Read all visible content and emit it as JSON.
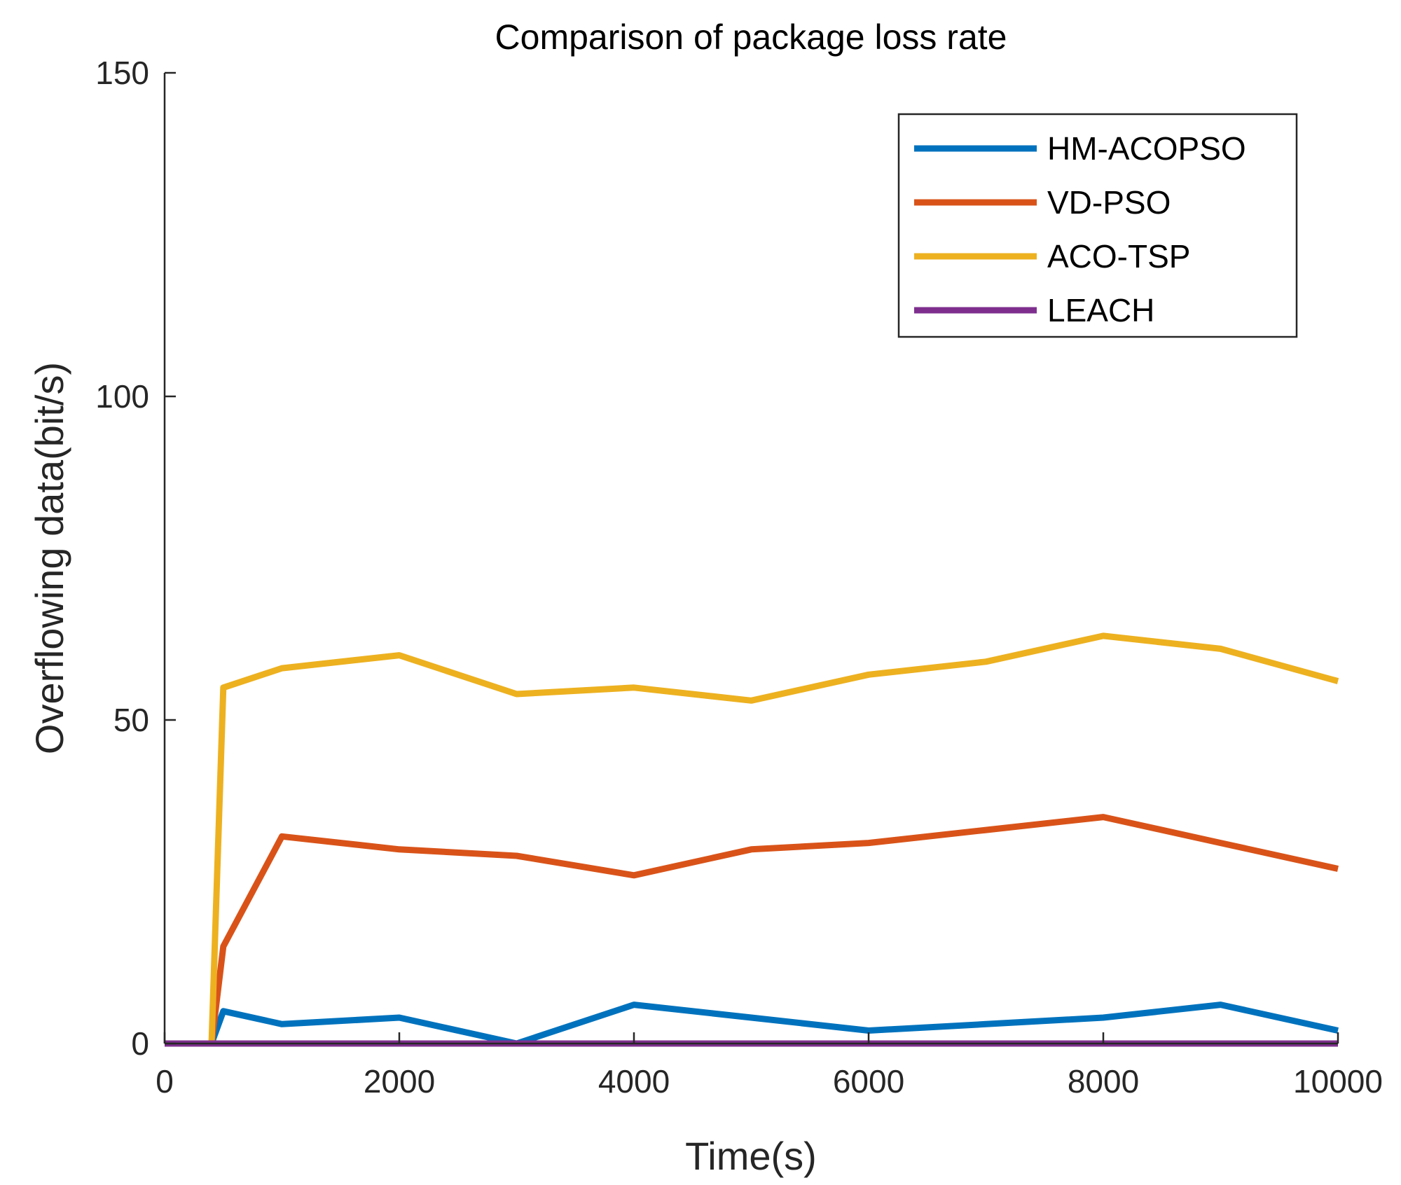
{
  "chart_data": {
    "type": "line",
    "title": "Comparison of package loss rate",
    "xlabel": "Time(s)",
    "ylabel": "Overflowing data(bit/s)",
    "xlim": [
      0,
      10000
    ],
    "ylim": [
      0,
      150
    ],
    "xticks": [
      0,
      2000,
      4000,
      6000,
      8000,
      10000
    ],
    "yticks": [
      0,
      50,
      100,
      150
    ],
    "grid": false,
    "legend_position": "top-right",
    "series": [
      {
        "name": "HM-ACOPSO",
        "color": "#0072BD",
        "x": [
          0,
          400,
          500,
          1000,
          2000,
          3000,
          4000,
          5000,
          6000,
          7000,
          8000,
          9000,
          10000
        ],
        "y": [
          0,
          0,
          5,
          3,
          4,
          0,
          6,
          4,
          2,
          3,
          4,
          6,
          2
        ]
      },
      {
        "name": "VD-PSO",
        "color": "#D95319",
        "x": [
          0,
          400,
          500,
          1000,
          2000,
          3000,
          4000,
          5000,
          6000,
          7000,
          8000,
          9000,
          10000
        ],
        "y": [
          0,
          0,
          15,
          32,
          30,
          29,
          26,
          30,
          31,
          33,
          35,
          31,
          27
        ]
      },
      {
        "name": "ACO-TSP",
        "color": "#EDB120",
        "x": [
          0,
          400,
          500,
          1000,
          2000,
          3000,
          4000,
          5000,
          6000,
          7000,
          8000,
          9000,
          10000
        ],
        "y": [
          0,
          0,
          55,
          58,
          60,
          54,
          55,
          53,
          57,
          59,
          63,
          61,
          56
        ]
      },
      {
        "name": "LEACH",
        "color": "#7E2F8E",
        "x": [
          0,
          10000
        ],
        "y": [
          0,
          0
        ]
      }
    ]
  }
}
